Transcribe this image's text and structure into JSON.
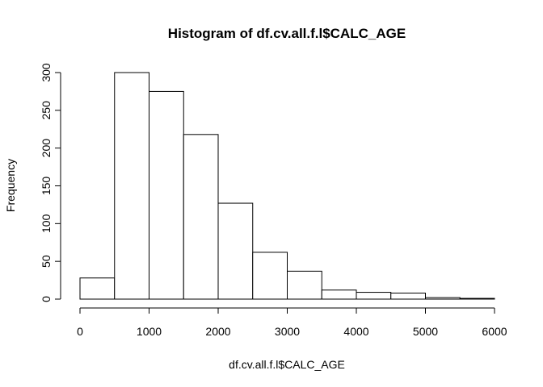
{
  "chart_data": {
    "type": "bar",
    "title": "Histogram of df.cv.all.f.l$CALC_AGE",
    "xlabel": "df.cv.all.f.l$CALC_AGE",
    "ylabel": "Frequency",
    "bin_edges": [
      0,
      500,
      1000,
      1500,
      2000,
      2500,
      3000,
      3500,
      4000,
      4500,
      5000,
      5500,
      6000
    ],
    "values": [
      28,
      300,
      275,
      218,
      127,
      62,
      37,
      12,
      9,
      8,
      2,
      1
    ],
    "xlim": [
      0,
      6000
    ],
    "ylim": [
      0,
      300
    ],
    "x_ticks": [
      0,
      1000,
      2000,
      3000,
      4000,
      5000,
      6000
    ],
    "y_ticks": [
      0,
      50,
      100,
      150,
      200,
      250,
      300
    ],
    "grid": false,
    "bar_fill": "#ffffff",
    "bar_stroke": "#000000"
  }
}
